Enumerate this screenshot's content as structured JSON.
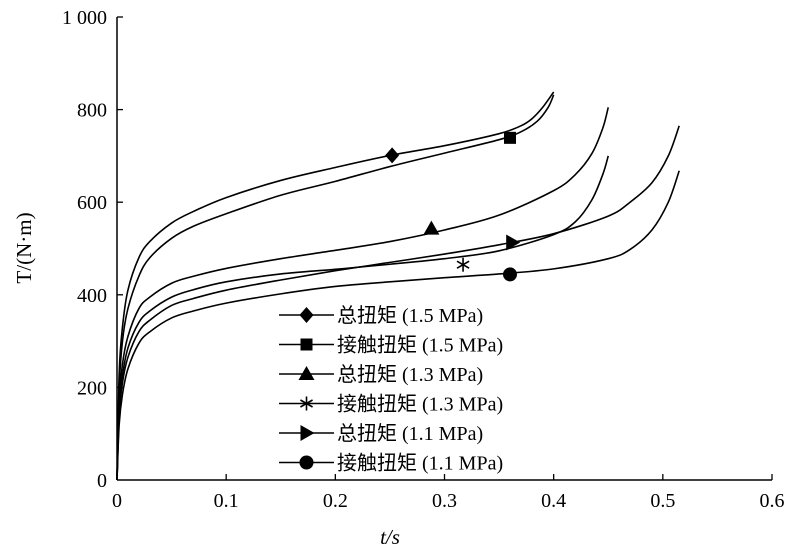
{
  "chart_data": {
    "type": "line",
    "xlabel": "t/s",
    "ylabel": "T/(N·m)",
    "xlim": [
      0,
      0.6
    ],
    "ylim": [
      0,
      1000
    ],
    "xticks": [
      0,
      0.1,
      0.2,
      0.3,
      0.4,
      0.5,
      0.6
    ],
    "xtick_labels": [
      "0",
      "0.1",
      "0.2",
      "0.3",
      "0.4",
      "0.5",
      "0.6"
    ],
    "yticks": [
      0,
      200,
      400,
      600,
      800,
      1000
    ],
    "ytick_labels": [
      "0",
      "200",
      "400",
      "600",
      "800",
      "1 000"
    ],
    "grid": false,
    "legend_position": "bottom-center",
    "series": [
      {
        "name": "总扭矩 (1.5 MPa)",
        "marker": "diamond",
        "marker_at": [
          0.252,
          701
        ],
        "x": [
          0,
          0.002,
          0.005,
          0.01,
          0.02,
          0.03,
          0.05,
          0.07,
          0.1,
          0.15,
          0.2,
          0.25,
          0.3,
          0.35,
          0.37,
          0.38,
          0.39,
          0.4
        ],
        "y": [
          0,
          230,
          330,
          410,
          480,
          515,
          555,
          580,
          610,
          647,
          675,
          701,
          722,
          748,
          765,
          780,
          805,
          838
        ]
      },
      {
        "name": "接触扭矩 (1.5 MPa)",
        "marker": "square",
        "marker_at": [
          0.36,
          739
        ],
        "x": [
          0,
          0.002,
          0.005,
          0.01,
          0.02,
          0.03,
          0.05,
          0.07,
          0.1,
          0.15,
          0.2,
          0.25,
          0.3,
          0.35,
          0.37,
          0.385,
          0.395,
          0.4
        ],
        "y": [
          0,
          200,
          300,
          370,
          440,
          480,
          522,
          548,
          575,
          615,
          645,
          677,
          706,
          735,
          752,
          775,
          805,
          832
        ]
      },
      {
        "name": "总扭矩 (1.3 MPa)",
        "marker": "triangle",
        "marker_at": [
          0.288,
          543
        ],
        "x": [
          0,
          0.002,
          0.005,
          0.01,
          0.02,
          0.03,
          0.05,
          0.07,
          0.1,
          0.15,
          0.2,
          0.25,
          0.3,
          0.35,
          0.4,
          0.42,
          0.435,
          0.445,
          0.45
        ],
        "y": [
          0,
          170,
          250,
          310,
          370,
          395,
          425,
          440,
          457,
          478,
          496,
          515,
          540,
          572,
          625,
          660,
          705,
          760,
          805
        ]
      },
      {
        "name": "接触扭矩 (1.3 MPa)",
        "marker": "asterisk",
        "marker_at": [
          0.317,
          465
        ],
        "x": [
          0,
          0.002,
          0.005,
          0.01,
          0.02,
          0.03,
          0.05,
          0.07,
          0.1,
          0.15,
          0.2,
          0.25,
          0.3,
          0.35,
          0.4,
          0.42,
          0.435,
          0.445,
          0.45
        ],
        "y": [
          0,
          150,
          225,
          285,
          340,
          365,
          395,
          411,
          428,
          445,
          455,
          466,
          478,
          495,
          530,
          558,
          605,
          660,
          700
        ]
      },
      {
        "name": "总扭矩 (1.1 MPa)",
        "marker": "triangle-right",
        "marker_at": [
          0.362,
          513
        ],
        "x": [
          0,
          0.002,
          0.005,
          0.01,
          0.02,
          0.03,
          0.05,
          0.07,
          0.1,
          0.15,
          0.2,
          0.25,
          0.3,
          0.35,
          0.4,
          0.45,
          0.47,
          0.49,
          0.505,
          0.515
        ],
        "y": [
          0,
          140,
          210,
          265,
          320,
          345,
          377,
          392,
          410,
          432,
          452,
          470,
          488,
          508,
          532,
          570,
          600,
          642,
          700,
          765
        ]
      },
      {
        "name": "接触扭矩 (1.1 MPa)",
        "marker": "circle",
        "marker_at": [
          0.36,
          444
        ],
        "x": [
          0,
          0.002,
          0.005,
          0.01,
          0.02,
          0.03,
          0.05,
          0.07,
          0.1,
          0.15,
          0.2,
          0.25,
          0.3,
          0.35,
          0.4,
          0.45,
          0.47,
          0.49,
          0.505,
          0.515
        ],
        "y": [
          0,
          120,
          185,
          240,
          295,
          320,
          350,
          365,
          382,
          402,
          418,
          428,
          437,
          445,
          456,
          478,
          498,
          540,
          600,
          668
        ]
      }
    ]
  }
}
